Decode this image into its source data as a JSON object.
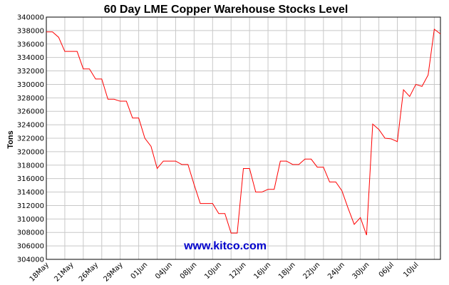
{
  "chart_data": {
    "type": "line",
    "title": "60 Day LME Copper Warehouse Stocks Level",
    "xlabel": "",
    "ylabel": "Tons",
    "ylim": [
      304000,
      340000
    ],
    "y_ticks": [
      "340000",
      "338000",
      "336000",
      "334000",
      "332000",
      "330000",
      "328000",
      "326000",
      "324000",
      "322000",
      "320000",
      "318000",
      "316000",
      "314000",
      "312000",
      "310000",
      "308000",
      "306000",
      "304000"
    ],
    "x_tick_labels": [
      "18May",
      "21May",
      "26May",
      "29May",
      "01Jun",
      "04Jun",
      "08Jun",
      "10Jun",
      "12Jun",
      "16Jun",
      "18Jun",
      "22Jun",
      "24Jun",
      "30Jun",
      "06Jul",
      "10Jul"
    ],
    "grid": true,
    "series": [
      {
        "color": "#ff0000",
        "values": [
          337800,
          337800,
          337000,
          334900,
          334900,
          334900,
          332300,
          332300,
          330800,
          330800,
          327800,
          327800,
          327500,
          327500,
          325000,
          325000,
          322000,
          320800,
          317500,
          318600,
          318600,
          318600,
          318100,
          318100,
          315100,
          312300,
          312300,
          312300,
          310800,
          310800,
          307900,
          307900,
          317500,
          317500,
          314000,
          314000,
          314400,
          314400,
          318600,
          318600,
          318100,
          318100,
          318900,
          318900,
          317700,
          317700,
          315500,
          315500,
          314200,
          311600,
          309200,
          310200,
          307600,
          324100,
          323300,
          322000,
          321900,
          321500,
          329200,
          328200,
          330000,
          329700,
          331400,
          338200,
          337500
        ]
      }
    ],
    "watermark": "www.kitco.com",
    "colors": {
      "line": "#ff0000",
      "grid": "#c8c8c8",
      "watermark": "#0000cc",
      "axis": "#000000"
    }
  }
}
